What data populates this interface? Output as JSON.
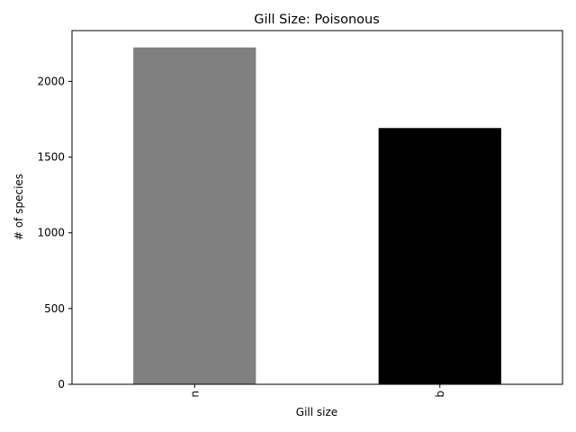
{
  "chart_data": {
    "type": "bar",
    "title": "Gill Size: Poisonous",
    "xlabel": "Gill size",
    "ylabel": "# of species",
    "categories": [
      "n",
      "b"
    ],
    "values": [
      2224,
      1692
    ],
    "colors": [
      "#808080",
      "#000000"
    ],
    "ylim": [
      0,
      2335.2
    ],
    "yticks": [
      0,
      500,
      1000,
      1500,
      2000
    ],
    "grid": false,
    "legend": "none",
    "xtick_rotation": "vertical"
  }
}
